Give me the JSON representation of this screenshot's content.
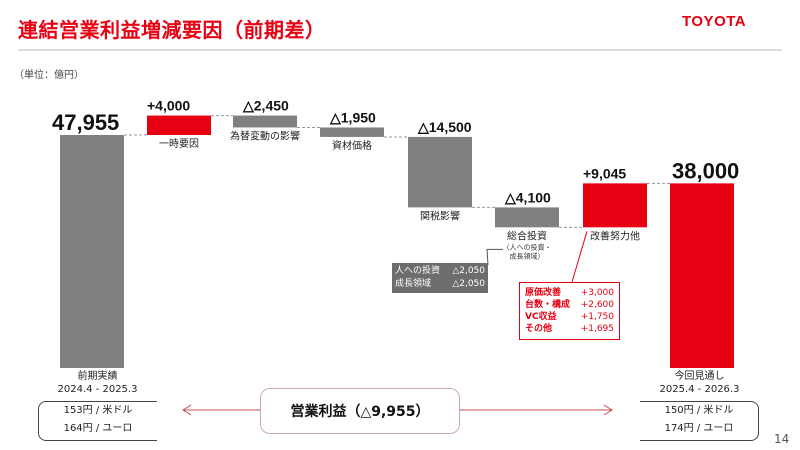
{
  "title": "連結営業利益増減要因（前期差）",
  "logo": "TOYOTA",
  "unit": "（単位：億円）",
  "page_number": "14",
  "colors": {
    "accent": "#e60012",
    "gray": "#808080",
    "dark_gray": "#6d6d6d"
  },
  "chart_data": {
    "type": "waterfall",
    "unit": "億円",
    "bars": [
      {
        "label": "前期実績",
        "value": 47955,
        "kind": "total",
        "value_label": "47,955"
      },
      {
        "label": "一時要因",
        "value": 4000,
        "kind": "increase",
        "value_label": "+4,000"
      },
      {
        "label": "為替変動の影響",
        "value": -2450,
        "kind": "decrease",
        "value_label": "△2,450"
      },
      {
        "label": "資材価格",
        "value": -1950,
        "kind": "decrease",
        "value_label": "△1,950"
      },
      {
        "label": "関税影響",
        "value": -14500,
        "kind": "decrease",
        "value_label": "△14,500"
      },
      {
        "label": "総合投資",
        "sublabel": [
          "（人への投資・",
          "成長領域）"
        ],
        "value": -4100,
        "kind": "decrease",
        "value_label": "△4,100"
      },
      {
        "label": "改善努力他",
        "value": 9045,
        "kind": "increase",
        "value_label": "+9,045"
      },
      {
        "label": "今回見通し",
        "value": 38000,
        "kind": "total",
        "value_label": "38,000"
      }
    ],
    "investment_breakdown": [
      {
        "name": "人への投資",
        "value": "△2,050"
      },
      {
        "name": "成長領域",
        "value": "△2,050"
      }
    ],
    "improvement_breakdown": [
      {
        "name": "原価改善",
        "value": "+3,000"
      },
      {
        "name": "台数・構成",
        "value": "+2,600"
      },
      {
        "name": "VC収益",
        "value": "+1,750"
      },
      {
        "name": "その他",
        "value": "+1,695"
      }
    ]
  },
  "left_period": {
    "label": "前期実績",
    "range": "2024.4 - 2025.3",
    "rates": [
      "153円 / 米ドル",
      "164円 / ユーロ"
    ]
  },
  "right_period": {
    "label": "今回見通し",
    "range": "2025.4 - 2026.3",
    "rates": [
      "150円 / 米ドル",
      "174円 / ユーロ"
    ]
  },
  "operating_income_change": "営業利益（△9,955）"
}
